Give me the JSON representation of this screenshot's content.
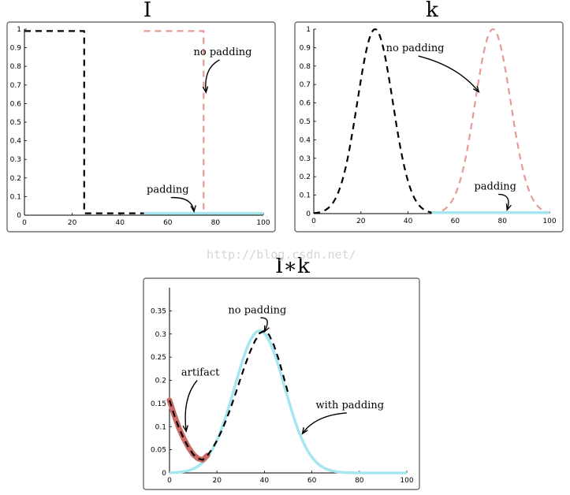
{
  "watermark": "http://blog.csdn.net/",
  "colors": {
    "black": "#000000",
    "salmon": "#e39b94",
    "cyan": "#a6e6f0",
    "artifact": "#cc6a66"
  },
  "chart_data": [
    {
      "type": "line",
      "title": "I",
      "xlim": [
        0,
        100
      ],
      "ylim": [
        0,
        1
      ],
      "xticks": [
        "0",
        "20",
        "40",
        "60",
        "80",
        "100"
      ],
      "yticks": [
        "0",
        "0.1",
        "0.2",
        "0.3",
        "0.4",
        "0.5",
        "0.6",
        "0.7",
        "0.8",
        "0.9",
        "1"
      ],
      "series": [
        {
          "name": "I (black dashed)",
          "style": "dashed",
          "color": "#000000",
          "x": [
            0,
            25,
            25,
            50
          ],
          "y": [
            0.99,
            0.99,
            0.01,
            0.01
          ]
        },
        {
          "name": "I shifted, no padding",
          "style": "dashed",
          "color": "#e39b94",
          "x": [
            50,
            75,
            75,
            100
          ],
          "y": [
            0.99,
            0.99,
            0.01,
            0.01
          ]
        },
        {
          "name": "padding",
          "style": "solid",
          "color": "#a6e6f0",
          "x": [
            50,
            100
          ],
          "y": [
            0.01,
            0.01
          ]
        }
      ],
      "annotations": [
        {
          "text": "no padding",
          "xy": [
            76,
            0.66
          ],
          "textpos": [
            83,
            0.86
          ]
        },
        {
          "text": "padding",
          "xy": [
            71,
            0.02
          ],
          "textpos": [
            60,
            0.12
          ]
        }
      ]
    },
    {
      "type": "line",
      "title": "k",
      "xlim": [
        0,
        100
      ],
      "ylim": [
        0,
        1
      ],
      "xticks": [
        "0",
        "20",
        "40",
        "60",
        "80",
        "100"
      ],
      "yticks": [
        "0",
        "0.1",
        "0.2",
        "0.3",
        "0.4",
        "0.5",
        "0.6",
        "0.7",
        "0.8",
        "0.9",
        "1"
      ],
      "series": [
        {
          "name": "k (black dashed)",
          "style": "dashed",
          "color": "#000000",
          "gaussian": {
            "center": 26,
            "sigma": 7.5,
            "peak": 1,
            "from": 0,
            "to": 50
          }
        },
        {
          "name": "k shifted, no padding",
          "style": "dashed",
          "color": "#e39b94",
          "gaussian": {
            "center": 76,
            "sigma": 7.5,
            "peak": 1,
            "from": 50,
            "to": 100
          }
        },
        {
          "name": "padding",
          "style": "solid",
          "color": "#a6e6f0",
          "x": [
            50,
            100
          ],
          "y": [
            0.005,
            0.005
          ]
        }
      ],
      "annotations": [
        {
          "text": "no padding",
          "xy": [
            70,
            0.66
          ],
          "textpos": [
            43,
            0.88
          ]
        },
        {
          "text": "padding",
          "xy": [
            82,
            0.02
          ],
          "textpos": [
            77,
            0.13
          ]
        }
      ]
    },
    {
      "type": "line",
      "title": "I∗k",
      "xlim": [
        0,
        100
      ],
      "ylim": [
        0,
        0.4
      ],
      "xticks": [
        "0",
        "20",
        "40",
        "60",
        "80",
        "100"
      ],
      "yticks": [
        "0",
        "0.05",
        "0.1",
        "0.15",
        "0.2",
        "0.25",
        "0.3",
        "0.35"
      ],
      "series": [
        {
          "name": "with padding",
          "style": "solid",
          "color": "#a6e6f0",
          "gaussian": {
            "center": 38,
            "sigma": 10.5,
            "peak": 0.307,
            "from": 0,
            "to": 100
          }
        },
        {
          "name": "artifact",
          "style": "solid",
          "color": "#cc6a66",
          "x": [
            0,
            2,
            4,
            6,
            8,
            10,
            12,
            14,
            16
          ],
          "y": [
            0.157,
            0.125,
            0.097,
            0.074,
            0.055,
            0.04,
            0.031,
            0.028,
            0.038
          ]
        },
        {
          "name": "no padding",
          "style": "dashed",
          "color": "#000000",
          "x": [
            0,
            2,
            4,
            6,
            8,
            10,
            12,
            14,
            16,
            18,
            20,
            22,
            24,
            26,
            28,
            30,
            32,
            34,
            36,
            38,
            40,
            42,
            44,
            46,
            48,
            50
          ],
          "y": [
            0.157,
            0.125,
            0.097,
            0.074,
            0.055,
            0.04,
            0.031,
            0.028,
            0.038,
            0.052,
            0.07,
            0.091,
            0.116,
            0.144,
            0.174,
            0.205,
            0.235,
            0.262,
            0.285,
            0.302,
            0.307,
            0.298,
            0.276,
            0.245,
            0.209,
            0.172
          ]
        }
      ],
      "annotations": [
        {
          "text": "no padding",
          "xy": [
            40,
            0.305
          ],
          "textpos": [
            37,
            0.345
          ]
        },
        {
          "text": "artifact",
          "xy": [
            7,
            0.09
          ],
          "textpos": [
            13,
            0.21
          ]
        },
        {
          "text": "with padding",
          "xy": [
            56,
            0.085
          ],
          "textpos": [
            76,
            0.14
          ]
        }
      ]
    }
  ]
}
